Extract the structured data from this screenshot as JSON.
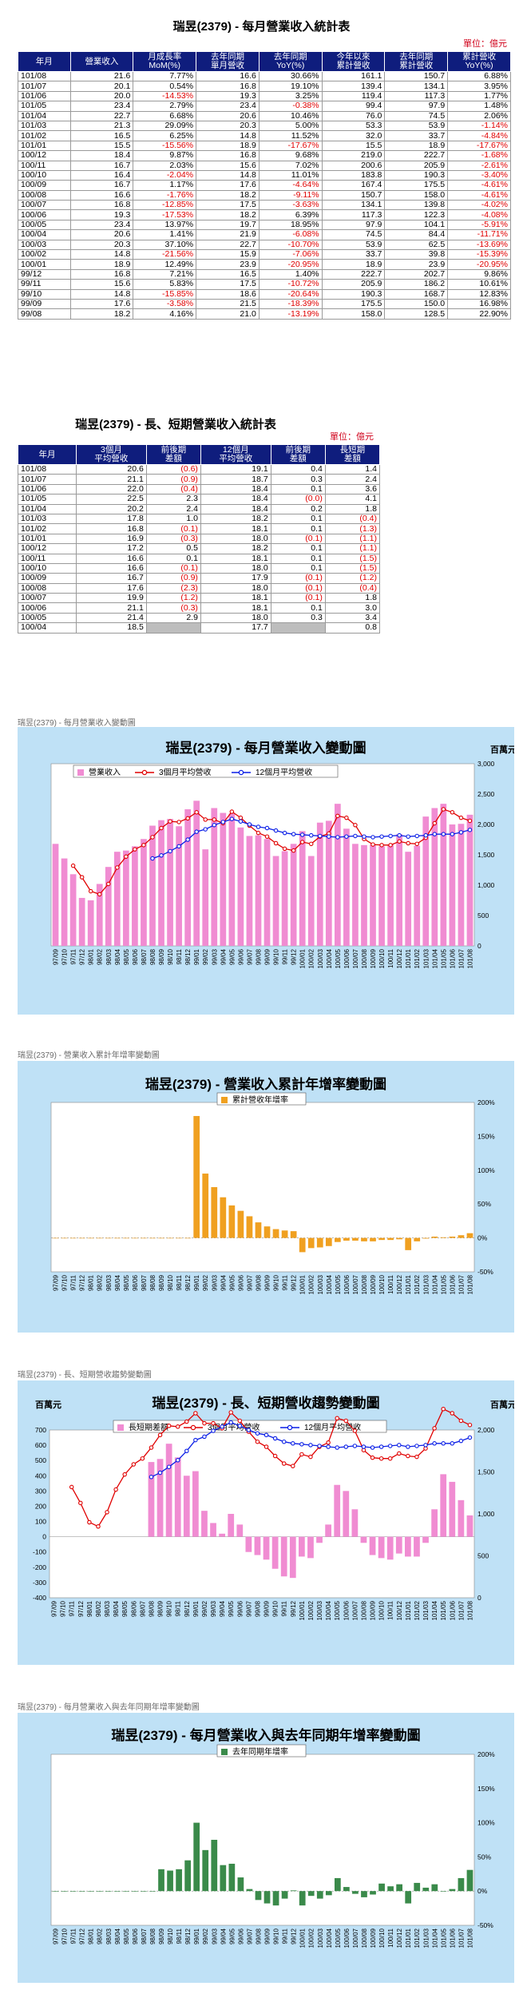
{
  "tables": {
    "monthly": {
      "title": "瑞昱(2379) - 每月營業收入統計表",
      "unit": "單位：億元",
      "headers": [
        "年月",
        "營業收入",
        "月成長率\nMoM(%)",
        "去年同期\n單月營收",
        "去年同期\nYoY(%)",
        "今年以來\n累計營收",
        "去年同期\n累計營收",
        "累計營收\nYoY(%)"
      ],
      "rows": [
        [
          "101/08",
          "21.6",
          "7.77%",
          "16.6",
          "30.66%",
          "161.1",
          "150.7",
          "6.88%"
        ],
        [
          "101/07",
          "20.1",
          "0.54%",
          "16.8",
          "19.10%",
          "139.4",
          "134.1",
          "3.95%"
        ],
        [
          "101/06",
          "20.0",
          "-14.53%",
          "19.3",
          "3.25%",
          "119.4",
          "117.3",
          "1.77%"
        ],
        [
          "101/05",
          "23.4",
          "2.79%",
          "23.4",
          "-0.38%",
          "99.4",
          "97.9",
          "1.48%"
        ],
        [
          "101/04",
          "22.7",
          "6.68%",
          "20.6",
          "10.46%",
          "76.0",
          "74.5",
          "2.06%"
        ],
        [
          "101/03",
          "21.3",
          "29.09%",
          "20.3",
          "5.00%",
          "53.3",
          "53.9",
          "-1.14%"
        ],
        [
          "101/02",
          "16.5",
          "6.25%",
          "14.8",
          "11.52%",
          "32.0",
          "33.7",
          "-4.84%"
        ],
        [
          "101/01",
          "15.5",
          "-15.56%",
          "18.9",
          "-17.67%",
          "15.5",
          "18.9",
          "-17.67%"
        ],
        [
          "100/12",
          "18.4",
          "9.87%",
          "16.8",
          "9.68%",
          "219.0",
          "222.7",
          "-1.68%"
        ],
        [
          "100/11",
          "16.7",
          "2.03%",
          "15.6",
          "7.02%",
          "200.6",
          "205.9",
          "-2.61%"
        ],
        [
          "100/10",
          "16.4",
          "-2.04%",
          "14.8",
          "11.01%",
          "183.8",
          "190.3",
          "-3.40%"
        ],
        [
          "100/09",
          "16.7",
          "1.17%",
          "17.6",
          "-4.64%",
          "167.4",
          "175.5",
          "-4.61%"
        ],
        [
          "100/08",
          "16.6",
          "-1.76%",
          "18.2",
          "-9.11%",
          "150.7",
          "158.0",
          "-4.61%"
        ],
        [
          "100/07",
          "16.8",
          "-12.85%",
          "17.5",
          "-3.63%",
          "134.1",
          "139.8",
          "-4.02%"
        ],
        [
          "100/06",
          "19.3",
          "-17.53%",
          "18.2",
          "6.39%",
          "117.3",
          "122.3",
          "-4.08%"
        ],
        [
          "100/05",
          "23.4",
          "13.97%",
          "19.7",
          "18.95%",
          "97.9",
          "104.1",
          "-5.91%"
        ],
        [
          "100/04",
          "20.6",
          "1.41%",
          "21.9",
          "-6.08%",
          "74.5",
          "84.4",
          "-11.71%"
        ],
        [
          "100/03",
          "20.3",
          "37.10%",
          "22.7",
          "-10.70%",
          "53.9",
          "62.5",
          "-13.69%"
        ],
        [
          "100/02",
          "14.8",
          "-21.56%",
          "15.9",
          "-7.06%",
          "33.7",
          "39.8",
          "-15.39%"
        ],
        [
          "100/01",
          "18.9",
          "12.49%",
          "23.9",
          "-20.95%",
          "18.9",
          "23.9",
          "-20.95%"
        ],
        [
          "99/12",
          "16.8",
          "7.21%",
          "16.5",
          "1.40%",
          "222.7",
          "202.7",
          "9.86%"
        ],
        [
          "99/11",
          "15.6",
          "5.83%",
          "17.5",
          "-10.72%",
          "205.9",
          "186.2",
          "10.61%"
        ],
        [
          "99/10",
          "14.8",
          "-15.85%",
          "18.6",
          "-20.64%",
          "190.3",
          "168.7",
          "12.83%"
        ],
        [
          "99/09",
          "17.6",
          "-3.58%",
          "21.5",
          "-18.39%",
          "175.5",
          "150.0",
          "16.98%"
        ],
        [
          "99/08",
          "18.2",
          "4.16%",
          "21.0",
          "-13.19%",
          "158.0",
          "128.5",
          "22.90%"
        ]
      ]
    },
    "longshort": {
      "title": "瑞昱(2379) - 長、短期營業收入統計表",
      "unit": "單位：億元",
      "headers": [
        "年月",
        "3個月\n平均營收",
        "前後期\n差額",
        "12個月\n平均營收",
        "前後期\n差額",
        "長短期\n差額"
      ],
      "rows": [
        [
          "101/08",
          "20.6",
          "(0.6)",
          "19.1",
          "0.4",
          "1.4"
        ],
        [
          "101/07",
          "21.1",
          "(0.9)",
          "18.7",
          "0.3",
          "2.4"
        ],
        [
          "101/06",
          "22.0",
          "(0.4)",
          "18.4",
          "0.1",
          "3.6"
        ],
        [
          "101/05",
          "22.5",
          "2.3",
          "18.4",
          "(0.0)",
          "4.1"
        ],
        [
          "101/04",
          "20.2",
          "2.4",
          "18.4",
          "0.2",
          "1.8"
        ],
        [
          "101/03",
          "17.8",
          "1.0",
          "18.2",
          "0.1",
          "(0.4)"
        ],
        [
          "101/02",
          "16.8",
          "(0.1)",
          "18.1",
          "0.1",
          "(1.3)"
        ],
        [
          "101/01",
          "16.9",
          "(0.3)",
          "18.0",
          "(0.1)",
          "(1.1)"
        ],
        [
          "100/12",
          "17.2",
          "0.5",
          "18.2",
          "0.1",
          "(1.1)"
        ],
        [
          "100/11",
          "16.6",
          "0.1",
          "18.1",
          "0.1",
          "(1.5)"
        ],
        [
          "100/10",
          "16.6",
          "(0.1)",
          "18.0",
          "0.1",
          "(1.5)"
        ],
        [
          "100/09",
          "16.7",
          "(0.9)",
          "17.9",
          "(0.1)",
          "(1.2)"
        ],
        [
          "100/08",
          "17.6",
          "(2.3)",
          "18.0",
          "(0.1)",
          "(0.4)"
        ],
        [
          "100/07",
          "19.9",
          "(1.2)",
          "18.1",
          "(0.1)",
          "1.8"
        ],
        [
          "100/06",
          "21.1",
          "(0.3)",
          "18.1",
          "0.1",
          "3.0"
        ],
        [
          "100/05",
          "21.4",
          "2.9",
          "18.0",
          "0.3",
          "3.4"
        ],
        [
          "100/04",
          "18.5",
          "",
          "17.7",
          "",
          "0.8"
        ]
      ]
    }
  },
  "captions": [
    "瑞昱(2379) - 每月營業收入變動圖",
    "瑞昱(2379) -  營業收入累計年增率變動圖",
    "瑞昱(2379) -  長、短期營收趨勢變動圖",
    "瑞昱(2379) - 每月營業收入與去年同期年增率變動圖"
  ],
  "unit_label": "百萬元",
  "colors": {
    "header": "#0f1d7d",
    "panel": "#bfe1f6",
    "pink": "#f08cd2",
    "orange": "#f0a020",
    "green": "#3a8a4a",
    "red": "#e00000",
    "blue": "#0a1ee6"
  },
  "chart_data": [
    {
      "type": "bar",
      "title": "瑞昱(2379) - 每月營業收入變動圖",
      "legend": [
        "營業收入",
        "3個月平均營收",
        "12個月平均營收"
      ],
      "ylim": [
        0,
        3000
      ],
      "yticks": [
        "0",
        "500",
        "1,000",
        "1,500",
        "2,000",
        "2,500",
        "3,000"
      ],
      "categories": [
        "97/09",
        "97/10",
        "97/11",
        "97/12",
        "98/01",
        "98/02",
        "98/03",
        "98/04",
        "98/05",
        "98/06",
        "98/07",
        "98/08",
        "98/09",
        "98/10",
        "98/11",
        "98/12",
        "99/01",
        "99/02",
        "99/03",
        "99/04",
        "99/05",
        "99/06",
        "99/07",
        "99/08",
        "99/09",
        "99/10",
        "99/11",
        "99/12",
        "100/01",
        "100/02",
        "100/03",
        "100/04",
        "100/05",
        "100/06",
        "100/07",
        "100/08",
        "100/09",
        "100/10",
        "100/11",
        "100/12",
        "101/01",
        "101/02",
        "101/03",
        "101/04",
        "101/05",
        "101/06",
        "101/07",
        "101/08"
      ],
      "series": [
        {
          "name": "營業收入",
          "values": [
            1680,
            1440,
            1180,
            790,
            750,
            1020,
            1300,
            1550,
            1570,
            1640,
            1760,
            1980,
            2070,
            2090,
            1970,
            2250,
            2390,
            1590,
            2270,
            2190,
            2180,
            1950,
            1810,
            1820,
            1760,
            1480,
            1560,
            1680,
            1890,
            1480,
            2030,
            2060,
            2340,
            1930,
            1680,
            1660,
            1670,
            1640,
            1670,
            1840,
            1550,
            1650,
            2130,
            2270,
            2340,
            2000,
            2010,
            2160
          ]
        },
        {
          "name": "3個月平均營收",
          "values": [
            null,
            null,
            1320,
            1130,
            900,
            850,
            1020,
            1290,
            1470,
            1590,
            1660,
            1790,
            1940,
            2050,
            2040,
            2100,
            2200,
            2080,
            2080,
            2020,
            2210,
            2110,
            1980,
            1860,
            1800,
            1690,
            1600,
            1570,
            1710,
            1680,
            1800,
            1850,
            2140,
            2110,
            1990,
            1760,
            1670,
            1660,
            1660,
            1720,
            1690,
            1680,
            1780,
            2020,
            2250,
            2200,
            2110,
            2060
          ]
        },
        {
          "name": "12個月平均營收",
          "values": [
            null,
            null,
            null,
            null,
            null,
            null,
            null,
            null,
            null,
            null,
            null,
            1440,
            1490,
            1560,
            1640,
            1750,
            1880,
            1920,
            1990,
            2040,
            2090,
            2050,
            2000,
            1960,
            1940,
            1900,
            1860,
            1840,
            1830,
            1820,
            1810,
            1800,
            1790,
            1800,
            1810,
            1800,
            1790,
            1800,
            1810,
            1820,
            1800,
            1810,
            1820,
            1840,
            1840,
            1840,
            1870,
            1910
          ]
        }
      ]
    },
    {
      "type": "bar",
      "title": "瑞昱(2379) -  營業收入累計年增率變動圖",
      "legend": [
        "累計營收年增率"
      ],
      "ylim": [
        -50,
        200
      ],
      "yticks": [
        "-50%",
        "0%",
        "50%",
        "100%",
        "150%",
        "200%"
      ],
      "categories": [
        "97/09",
        "97/10",
        "97/11",
        "97/12",
        "98/01",
        "98/02",
        "98/03",
        "98/04",
        "98/05",
        "98/06",
        "98/07",
        "98/08",
        "98/09",
        "98/10",
        "98/11",
        "98/12",
        "99/01",
        "99/02",
        "99/03",
        "99/04",
        "99/05",
        "99/06",
        "99/07",
        "99/08",
        "99/09",
        "99/10",
        "99/11",
        "99/12",
        "100/01",
        "100/02",
        "100/03",
        "100/04",
        "100/05",
        "100/06",
        "100/07",
        "100/08",
        "100/09",
        "100/10",
        "100/11",
        "100/12",
        "101/01",
        "101/02",
        "101/03",
        "101/04",
        "101/05",
        "101/06",
        "101/07",
        "101/08"
      ],
      "series": [
        {
          "name": "累計營收年增率",
          "values": [
            0,
            0,
            0,
            0,
            0,
            0,
            0,
            0,
            0,
            0,
            0,
            0,
            0,
            0,
            0,
            0,
            180,
            95,
            75,
            60,
            48,
            40,
            32,
            23,
            17,
            13,
            11,
            10,
            -21,
            -15,
            -14,
            -12,
            -6,
            -4,
            -4,
            -5,
            -5,
            -3,
            -3,
            -2,
            -18,
            -5,
            -1,
            2,
            1,
            2,
            4,
            7
          ]
        }
      ]
    },
    {
      "type": "bar",
      "title": "瑞昱(2379) -  長、短期營收趨勢變動圖",
      "legend": [
        "長短期差額",
        "3個月平均營收",
        "12個月平均營收"
      ],
      "ylim": [
        -400,
        700
      ],
      "ylim_right": [
        0,
        2000
      ],
      "yticks": [
        "-400",
        "-300",
        "-200",
        "-100",
        "0",
        "100",
        "200",
        "300",
        "400",
        "500",
        "600",
        "700"
      ],
      "yticks_right": [
        "0",
        "500",
        "1,000",
        "1,500",
        "2,000"
      ],
      "categories": [
        "97/09",
        "97/10",
        "97/11",
        "97/12",
        "98/01",
        "98/02",
        "98/03",
        "98/04",
        "98/05",
        "98/06",
        "98/07",
        "98/08",
        "98/09",
        "98/10",
        "98/11",
        "98/12",
        "99/01",
        "99/02",
        "99/03",
        "99/04",
        "99/05",
        "99/06",
        "99/07",
        "99/08",
        "99/09",
        "99/10",
        "99/11",
        "99/12",
        "100/01",
        "100/02",
        "100/03",
        "100/04",
        "100/05",
        "100/06",
        "100/07",
        "100/08",
        "100/09",
        "100/10",
        "100/11",
        "100/12",
        "101/01",
        "101/02",
        "101/03",
        "101/04",
        "101/05",
        "101/06",
        "101/07",
        "101/08"
      ],
      "series": [
        {
          "name": "長短期差額",
          "values": [
            null,
            null,
            null,
            null,
            null,
            null,
            null,
            null,
            null,
            null,
            null,
            490,
            510,
            610,
            520,
            400,
            430,
            170,
            90,
            20,
            150,
            80,
            -100,
            -120,
            -150,
            -210,
            -260,
            -270,
            -130,
            -140,
            -40,
            80,
            340,
            300,
            180,
            -40,
            -120,
            -140,
            -150,
            -110,
            -130,
            -130,
            -40,
            180,
            410,
            360,
            240,
            140
          ]
        },
        {
          "name": "3個月平均營收",
          "values": [
            null,
            null,
            1320,
            1130,
            900,
            850,
            1020,
            1290,
            1470,
            1590,
            1660,
            1790,
            1940,
            2050,
            2040,
            2100,
            2200,
            2080,
            2080,
            2020,
            2210,
            2110,
            1980,
            1860,
            1800,
            1690,
            1600,
            1570,
            1710,
            1680,
            1800,
            1850,
            2140,
            2110,
            1990,
            1760,
            1670,
            1660,
            1660,
            1720,
            1690,
            1680,
            1780,
            2020,
            2250,
            2200,
            2110,
            2060
          ]
        },
        {
          "name": "12個月平均營收",
          "values": [
            null,
            null,
            null,
            null,
            null,
            null,
            null,
            null,
            null,
            null,
            null,
            1440,
            1490,
            1560,
            1640,
            1750,
            1880,
            1920,
            1990,
            2040,
            2090,
            2050,
            2000,
            1960,
            1940,
            1900,
            1860,
            1840,
            1830,
            1820,
            1810,
            1800,
            1790,
            1800,
            1810,
            1800,
            1790,
            1800,
            1810,
            1820,
            1800,
            1810,
            1820,
            1840,
            1840,
            1840,
            1870,
            1910
          ]
        }
      ]
    },
    {
      "type": "bar",
      "title": "瑞昱(2379) -  每月營業收入與去年同期年增率變動圖",
      "legend": [
        "去年同期年增率"
      ],
      "ylim": [
        -50,
        200
      ],
      "yticks": [
        "-50%",
        "0%",
        "50%",
        "100%",
        "150%",
        "200%"
      ],
      "categories": [
        "97/09",
        "97/10",
        "97/11",
        "97/12",
        "98/01",
        "98/02",
        "98/03",
        "98/04",
        "98/05",
        "98/06",
        "98/07",
        "98/08",
        "98/09",
        "98/10",
        "98/11",
        "98/12",
        "99/01",
        "99/02",
        "99/03",
        "99/04",
        "99/05",
        "99/06",
        "99/07",
        "99/08",
        "99/09",
        "99/10",
        "99/11",
        "99/12",
        "100/01",
        "100/02",
        "100/03",
        "100/04",
        "100/05",
        "100/06",
        "100/07",
        "100/08",
        "100/09",
        "100/10",
        "100/11",
        "100/12",
        "101/01",
        "101/02",
        "101/03",
        "101/04",
        "101/05",
        "101/06",
        "101/07",
        "101/08"
      ],
      "series": [
        {
          "name": "去年同期年增率",
          "values": [
            0,
            0,
            0,
            0,
            0,
            0,
            0,
            0,
            0,
            0,
            0,
            0,
            32,
            30,
            32,
            45,
            100,
            60,
            75,
            38,
            40,
            20,
            3,
            -13,
            -18,
            -21,
            -11,
            1,
            -21,
            -7,
            -11,
            -6,
            19,
            6,
            -4,
            -9,
            -5,
            11,
            7,
            10,
            -18,
            12,
            5,
            10,
            -0.4,
            3,
            19,
            31
          ]
        }
      ]
    }
  ]
}
